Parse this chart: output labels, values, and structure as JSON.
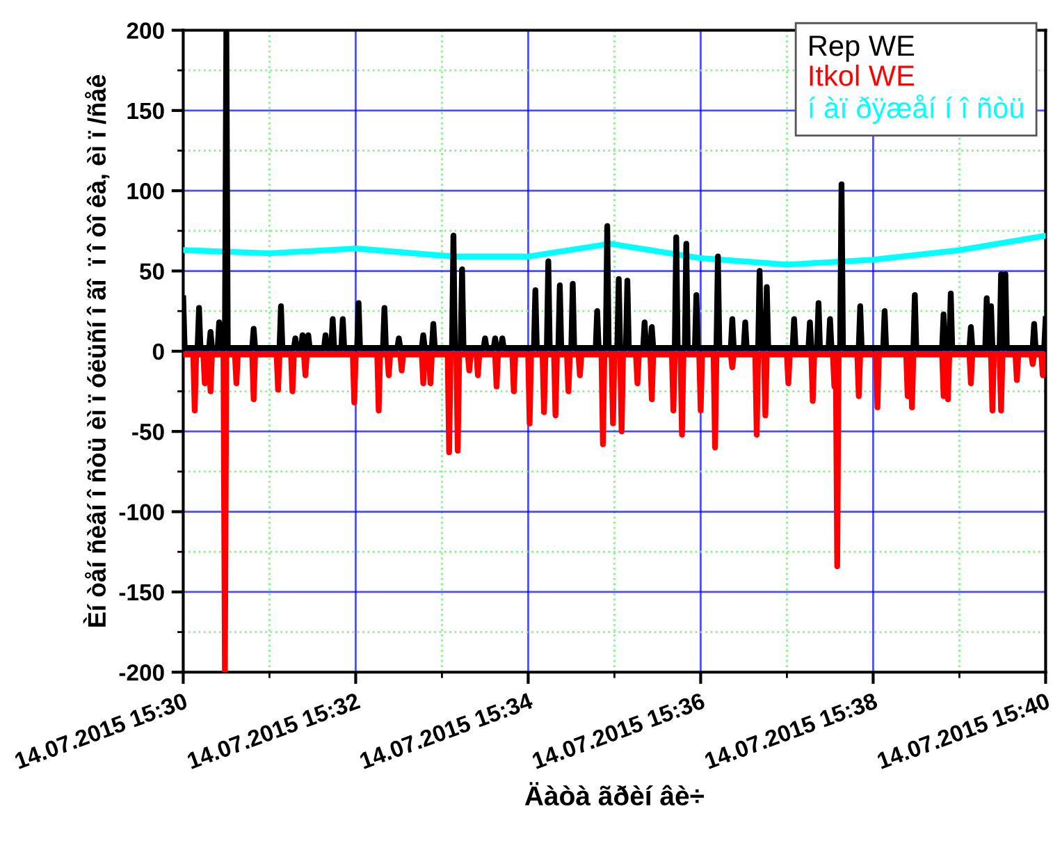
{
  "chart_data": {
    "type": "line",
    "xlabel": "Äàòà ãðèí âè÷",
    "ylabel": "Èí òåí ñèâí î ñòü èì ï óëüñí î ãî  ï î òî êà, èì ï /ñåê",
    "xlim": [
      "2015-07-14T15:30",
      "2015-07-14T15:40"
    ],
    "xticks": [
      {
        "value": "2015-07-14T15:30",
        "label": "14.07.2015 15:30"
      },
      {
        "value": "2015-07-14T15:31",
        "label": null
      },
      {
        "value": "2015-07-14T15:32",
        "label": "14.07.2015 15:32"
      },
      {
        "value": "2015-07-14T15:33",
        "label": null
      },
      {
        "value": "2015-07-14T15:34",
        "label": "14.07.2015 15:34"
      },
      {
        "value": "2015-07-14T15:35",
        "label": null
      },
      {
        "value": "2015-07-14T15:36",
        "label": "14.07.2015 15:36"
      },
      {
        "value": "2015-07-14T15:37",
        "label": null
      },
      {
        "value": "2015-07-14T15:38",
        "label": "14.07.2015 15:38"
      },
      {
        "value": "2015-07-14T15:39",
        "label": null
      },
      {
        "value": "2015-07-14T15:40",
        "label": "14.07.2015 15:40"
      }
    ],
    "ylim": [
      -200,
      200
    ],
    "yticks": [
      -200,
      {
        "value": -175,
        "label": null
      },
      -150,
      {
        "value": -125,
        "label": null
      },
      -100,
      {
        "value": -75,
        "label": null
      },
      -50,
      {
        "value": -25,
        "label": null
      },
      0,
      {
        "value": 25,
        "label": null
      },
      50,
      {
        "value": 75,
        "label": null
      },
      100,
      {
        "value": 125,
        "label": null
      },
      150,
      {
        "value": 175,
        "label": null
      },
      200
    ],
    "grid": true,
    "legend": "top right",
    "marker": "none",
    "line_style": "solid",
    "series": [
      {
        "name": "Rep WE",
        "color": "#000000",
        "x": [
          "2015-07-14T15:30:00",
          "2015-07-14T15:30:01",
          "2015-07-14T15:30:10",
          "2015-07-14T15:30:11",
          "2015-07-14T15:30:12",
          "2015-07-14T15:30:18",
          "2015-07-14T15:30:19",
          "2015-07-14T15:30:20",
          "2015-07-14T15:30:24",
          "2015-07-14T15:30:25",
          "2015-07-14T15:30:26",
          "2015-07-14T15:30:29",
          "2015-07-14T15:30:30",
          "2015-07-14T15:30:31",
          "2015-07-14T15:30:48",
          "2015-07-14T15:30:49",
          "2015-07-14T15:30:50",
          "2015-07-14T15:31:07",
          "2015-07-14T15:31:08",
          "2015-07-14T15:31:09",
          "2015-07-14T15:31:17",
          "2015-07-14T15:31:18",
          "2015-07-14T15:31:19",
          "2015-07-14T15:31:22",
          "2015-07-14T15:31:23",
          "2015-07-14T15:31:24",
          "2015-07-14T15:31:26",
          "2015-07-14T15:31:27",
          "2015-07-14T15:31:28",
          "2015-07-14T15:31:38",
          "2015-07-14T15:31:39",
          "2015-07-14T15:31:40",
          "2015-07-14T15:31:43",
          "2015-07-14T15:31:44",
          "2015-07-14T15:31:45",
          "2015-07-14T15:31:50",
          "2015-07-14T15:31:51",
          "2015-07-14T15:31:52",
          "2015-07-14T15:32:01",
          "2015-07-14T15:32:02",
          "2015-07-14T15:32:03",
          "2015-07-14T15:32:19",
          "2015-07-14T15:32:20",
          "2015-07-14T15:32:21",
          "2015-07-14T15:32:29",
          "2015-07-14T15:32:30",
          "2015-07-14T15:32:31",
          "2015-07-14T15:32:46",
          "2015-07-14T15:32:47",
          "2015-07-14T15:32:48",
          "2015-07-14T15:32:53",
          "2015-07-14T15:32:54",
          "2015-07-14T15:32:55",
          "2015-07-14T15:33:07",
          "2015-07-14T15:33:08",
          "2015-07-14T15:33:09",
          "2015-07-14T15:33:13",
          "2015-07-14T15:33:14",
          "2015-07-14T15:33:15",
          "2015-07-14T15:33:29",
          "2015-07-14T15:33:30",
          "2015-07-14T15:33:31",
          "2015-07-14T15:33:36",
          "2015-07-14T15:33:37",
          "2015-07-14T15:33:38",
          "2015-07-14T15:33:41",
          "2015-07-14T15:33:42",
          "2015-07-14T15:33:43",
          "2015-07-14T15:34:04",
          "2015-07-14T15:34:05",
          "2015-07-14T15:34:06",
          "2015-07-14T15:34:13",
          "2015-07-14T15:34:14",
          "2015-07-14T15:34:15",
          "2015-07-14T15:34:21",
          "2015-07-14T15:34:22",
          "2015-07-14T15:34:23",
          "2015-07-14T15:34:30",
          "2015-07-14T15:34:31",
          "2015-07-14T15:34:32",
          "2015-07-14T15:34:47",
          "2015-07-14T15:34:48",
          "2015-07-14T15:34:49",
          "2015-07-14T15:34:54",
          "2015-07-14T15:34:55",
          "2015-07-14T15:34:56",
          "2015-07-14T15:35:02",
          "2015-07-14T15:35:03",
          "2015-07-14T15:35:04",
          "2015-07-14T15:35:08",
          "2015-07-14T15:35:09",
          "2015-07-14T15:35:10",
          "2015-07-14T15:35:20",
          "2015-07-14T15:35:21",
          "2015-07-14T15:35:22",
          "2015-07-14T15:35:25",
          "2015-07-14T15:35:26",
          "2015-07-14T15:35:27",
          "2015-07-14T15:35:42",
          "2015-07-14T15:35:43",
          "2015-07-14T15:35:44",
          "2015-07-14T15:35:49",
          "2015-07-14T15:35:50",
          "2015-07-14T15:35:51",
          "2015-07-14T15:35:56",
          "2015-07-14T15:35:57",
          "2015-07-14T15:35:58",
          "2015-07-14T15:36:11",
          "2015-07-14T15:36:12",
          "2015-07-14T15:36:13",
          "2015-07-14T15:36:21",
          "2015-07-14T15:36:22",
          "2015-07-14T15:36:23",
          "2015-07-14T15:36:30",
          "2015-07-14T15:36:31",
          "2015-07-14T15:36:32",
          "2015-07-14T15:36:40",
          "2015-07-14T15:36:41",
          "2015-07-14T15:36:42",
          "2015-07-14T15:36:45",
          "2015-07-14T15:36:46",
          "2015-07-14T15:36:47",
          "2015-07-14T15:37:04",
          "2015-07-14T15:37:05",
          "2015-07-14T15:37:06",
          "2015-07-14T15:37:15",
          "2015-07-14T15:37:16",
          "2015-07-14T15:37:17",
          "2015-07-14T15:37:21",
          "2015-07-14T15:37:22",
          "2015-07-14T15:37:23",
          "2015-07-14T15:37:29",
          "2015-07-14T15:37:30",
          "2015-07-14T15:37:31",
          "2015-07-14T15:37:37",
          "2015-07-14T15:37:38",
          "2015-07-14T15:37:39",
          "2015-07-14T15:37:50",
          "2015-07-14T15:37:51",
          "2015-07-14T15:37:52",
          "2015-07-14T15:38:07",
          "2015-07-14T15:38:08",
          "2015-07-14T15:38:09",
          "2015-07-14T15:38:28",
          "2015-07-14T15:38:29",
          "2015-07-14T15:38:30",
          "2015-07-14T15:38:48",
          "2015-07-14T15:38:49",
          "2015-07-14T15:38:50",
          "2015-07-14T15:38:53",
          "2015-07-14T15:38:54",
          "2015-07-14T15:38:55",
          "2015-07-14T15:39:07",
          "2015-07-14T15:39:08",
          "2015-07-14T15:39:09",
          "2015-07-14T15:39:18",
          "2015-07-14T15:39:19",
          "2015-07-14T15:39:20",
          "2015-07-14T15:39:21",
          "2015-07-14T15:39:22",
          "2015-07-14T15:39:23",
          "2015-07-14T15:39:28",
          "2015-07-14T15:39:29",
          "2015-07-14T15:39:30",
          "2015-07-14T15:39:31",
          "2015-07-14T15:39:32",
          "2015-07-14T15:39:33",
          "2015-07-14T15:39:51",
          "2015-07-14T15:39:52",
          "2015-07-14T15:39:53",
          "2015-07-14T15:39:59",
          "2015-07-14T15:40:00"
        ],
        "values": [
          33,
          2,
          2,
          27,
          2,
          2,
          12,
          2,
          2,
          18,
          2,
          2,
          200,
          2,
          2,
          14,
          2,
          2,
          28,
          2,
          2,
          8,
          2,
          2,
          10,
          2,
          2,
          10,
          2,
          2,
          10,
          2,
          2,
          20,
          2,
          2,
          20,
          2,
          2,
          30,
          2,
          2,
          27,
          2,
          2,
          8,
          2,
          2,
          10,
          2,
          2,
          17,
          2,
          2,
          72,
          2,
          2,
          51,
          2,
          2,
          8,
          2,
          2,
          8,
          2,
          2,
          8,
          2,
          2,
          38,
          2,
          2,
          56,
          2,
          2,
          41,
          2,
          2,
          42,
          2,
          2,
          25,
          2,
          2,
          78,
          2,
          2,
          45,
          2,
          2,
          44,
          2,
          2,
          18,
          2,
          2,
          15,
          2,
          2,
          71,
          2,
          2,
          67,
          2,
          2,
          35,
          2,
          2,
          59,
          2,
          2,
          20,
          2,
          2,
          18,
          2,
          2,
          50,
          2,
          2,
          40,
          2,
          2,
          20,
          2,
          2,
          18,
          2,
          2,
          30,
          2,
          2,
          20,
          2,
          2,
          104,
          2,
          2,
          28,
          2,
          2,
          25,
          2,
          2,
          35,
          2,
          2,
          23,
          2,
          2,
          36,
          2,
          2,
          15,
          2,
          2,
          33,
          2,
          2,
          28,
          2,
          2,
          48,
          2,
          2,
          48,
          2,
          2,
          17,
          2,
          2,
          20
        ]
      },
      {
        "name": "Itkol WE",
        "color": "#ff0000",
        "x": [
          "2015-07-14T15:30:00",
          "2015-07-14T15:30:07",
          "2015-07-14T15:30:08",
          "2015-07-14T15:30:09",
          "2015-07-14T15:30:14",
          "2015-07-14T15:30:15",
          "2015-07-14T15:30:16",
          "2015-07-14T15:30:18",
          "2015-07-14T15:30:19",
          "2015-07-14T15:30:20",
          "2015-07-14T15:30:28",
          "2015-07-14T15:30:29",
          "2015-07-14T15:30:30",
          "2015-07-14T15:30:36",
          "2015-07-14T15:30:37",
          "2015-07-14T15:30:38",
          "2015-07-14T15:30:48",
          "2015-07-14T15:30:49",
          "2015-07-14T15:30:50",
          "2015-07-14T15:31:05",
          "2015-07-14T15:31:06",
          "2015-07-14T15:31:07",
          "2015-07-14T15:31:15",
          "2015-07-14T15:31:16",
          "2015-07-14T15:31:17",
          "2015-07-14T15:31:24",
          "2015-07-14T15:31:25",
          "2015-07-14T15:31:26",
          "2015-07-14T15:31:58",
          "2015-07-14T15:31:59",
          "2015-07-14T15:32:00",
          "2015-07-14T15:32:15",
          "2015-07-14T15:32:16",
          "2015-07-14T15:32:17",
          "2015-07-14T15:32:22",
          "2015-07-14T15:32:23",
          "2015-07-14T15:32:24",
          "2015-07-14T15:32:31",
          "2015-07-14T15:32:32",
          "2015-07-14T15:32:33",
          "2015-07-14T15:32:46",
          "2015-07-14T15:32:47",
          "2015-07-14T15:32:48",
          "2015-07-14T15:32:51",
          "2015-07-14T15:32:52",
          "2015-07-14T15:32:53",
          "2015-07-14T15:33:04",
          "2015-07-14T15:33:05",
          "2015-07-14T15:33:06",
          "2015-07-14T15:33:10",
          "2015-07-14T15:33:11",
          "2015-07-14T15:33:12",
          "2015-07-14T15:33:18",
          "2015-07-14T15:33:19",
          "2015-07-14T15:33:20",
          "2015-07-14T15:33:24",
          "2015-07-14T15:33:25",
          "2015-07-14T15:33:26",
          "2015-07-14T15:33:37",
          "2015-07-14T15:33:38",
          "2015-07-14T15:33:39",
          "2015-07-14T15:33:49",
          "2015-07-14T15:33:50",
          "2015-07-14T15:33:51",
          "2015-07-14T15:34:00",
          "2015-07-14T15:34:01",
          "2015-07-14T15:34:02",
          "2015-07-14T15:34:10",
          "2015-07-14T15:34:11",
          "2015-07-14T15:34:12",
          "2015-07-14T15:34:18",
          "2015-07-14T15:34:19",
          "2015-07-14T15:34:20",
          "2015-07-14T15:34:27",
          "2015-07-14T15:34:28",
          "2015-07-14T15:34:29",
          "2015-07-14T15:34:35",
          "2015-07-14T15:34:36",
          "2015-07-14T15:34:37",
          "2015-07-14T15:34:51",
          "2015-07-14T15:34:52",
          "2015-07-14T15:34:53",
          "2015-07-14T15:34:58",
          "2015-07-14T15:34:59",
          "2015-07-14T15:35:00",
          "2015-07-14T15:35:04",
          "2015-07-14T15:35:05",
          "2015-07-14T15:35:06",
          "2015-07-14T15:35:15",
          "2015-07-14T15:35:16",
          "2015-07-14T15:35:17",
          "2015-07-14T15:35:25",
          "2015-07-14T15:35:26",
          "2015-07-14T15:35:27",
          "2015-07-14T15:35:40",
          "2015-07-14T15:35:41",
          "2015-07-14T15:35:42",
          "2015-07-14T15:35:46",
          "2015-07-14T15:35:47",
          "2015-07-14T15:35:48",
          "2015-07-14T15:35:59",
          "2015-07-14T15:36:00",
          "2015-07-14T15:36:01",
          "2015-07-14T15:36:09",
          "2015-07-14T15:36:10",
          "2015-07-14T15:36:11",
          "2015-07-14T15:36:21",
          "2015-07-14T15:36:22",
          "2015-07-14T15:36:23",
          "2015-07-14T15:36:38",
          "2015-07-14T15:36:39",
          "2015-07-14T15:36:40",
          "2015-07-14T15:36:44",
          "2015-07-14T15:36:45",
          "2015-07-14T15:36:46",
          "2015-07-14T15:37:00",
          "2015-07-14T15:37:01",
          "2015-07-14T15:37:02",
          "2015-07-14T15:37:17",
          "2015-07-14T15:37:18",
          "2015-07-14T15:37:19",
          "2015-07-14T15:37:32",
          "2015-07-14T15:37:33",
          "2015-07-14T15:37:34",
          "2015-07-14T15:37:35",
          "2015-07-14T15:37:36",
          "2015-07-14T15:37:49",
          "2015-07-14T15:37:50",
          "2015-07-14T15:37:51",
          "2015-07-14T15:38:02",
          "2015-07-14T15:38:03",
          "2015-07-14T15:38:04",
          "2015-07-14T15:38:23",
          "2015-07-14T15:38:24",
          "2015-07-14T15:38:25",
          "2015-07-14T15:38:26",
          "2015-07-14T15:38:27",
          "2015-07-14T15:38:28",
          "2015-07-14T15:38:48",
          "2015-07-14T15:38:49",
          "2015-07-14T15:38:50",
          "2015-07-14T15:38:51",
          "2015-07-14T15:38:52",
          "2015-07-14T15:38:53",
          "2015-07-14T15:39:07",
          "2015-07-14T15:39:08",
          "2015-07-14T15:39:09",
          "2015-07-14T15:39:22",
          "2015-07-14T15:39:23",
          "2015-07-14T15:39:24",
          "2015-07-14T15:39:28",
          "2015-07-14T15:39:29",
          "2015-07-14T15:39:30",
          "2015-07-14T15:39:39",
          "2015-07-14T15:39:40",
          "2015-07-14T15:39:41",
          "2015-07-14T15:39:50",
          "2015-07-14T15:39:51",
          "2015-07-14T15:39:52",
          "2015-07-14T15:39:57",
          "2015-07-14T15:39:58",
          "2015-07-14T15:39:59",
          "2015-07-14T15:40:00"
        ],
        "values": [
          -2,
          -2,
          -37,
          -2,
          -2,
          -20,
          -2,
          -2,
          -25,
          -2,
          -2,
          -200,
          -2,
          -2,
          -20,
          -2,
          -2,
          -30,
          -2,
          -2,
          -24,
          -2,
          -2,
          -25,
          -2,
          -2,
          -15,
          -2,
          -2,
          -32,
          -2,
          -2,
          -37,
          -2,
          -2,
          -15,
          -2,
          -2,
          -12,
          -2,
          -2,
          -20,
          -2,
          -2,
          -20,
          -2,
          -2,
          -63,
          -2,
          -2,
          -62,
          -2,
          -2,
          -12,
          -2,
          -2,
          -15,
          -2,
          -2,
          -22,
          -2,
          -2,
          -25,
          -2,
          -2,
          -45,
          -2,
          -2,
          -38,
          -2,
          -2,
          -40,
          -2,
          -2,
          -25,
          -2,
          -2,
          -15,
          -2,
          -2,
          -58,
          -2,
          -2,
          -45,
          -2,
          -2,
          -50,
          -2,
          -2,
          -20,
          -2,
          -2,
          -30,
          -2,
          -2,
          -37,
          -2,
          -2,
          -52,
          -2,
          -2,
          -37,
          -2,
          -2,
          -60,
          -2,
          -2,
          -10,
          -2,
          -2,
          -52,
          -2,
          -2,
          -40,
          -2,
          -2,
          -20,
          -2,
          -2,
          -31,
          -2,
          -2,
          -22,
          -2,
          -134,
          -2,
          -2,
          -28,
          -2,
          -2,
          -35,
          -2,
          -2,
          -28,
          -2,
          -2,
          -35,
          -2,
          -2,
          -28,
          -2,
          -2,
          -30,
          -2,
          -2,
          -20,
          -2,
          -2,
          -37,
          -2,
          -2,
          -37,
          -2,
          -2,
          -18,
          -2,
          -2,
          -8,
          -2,
          -2,
          -15,
          -2,
          -2
        ]
      },
      {
        "name": "í àï ðÿæåí í î ñòü",
        "color": "#00ffff",
        "x": [
          "2015-07-14T15:30:00",
          "2015-07-14T15:31:00",
          "2015-07-14T15:32:00",
          "2015-07-14T15:33:08",
          "2015-07-14T15:34:00",
          "2015-07-14T15:34:57",
          "2015-07-14T15:36:00",
          "2015-07-14T15:37:00",
          "2015-07-14T15:38:00",
          "2015-07-14T15:39:00",
          "2015-07-14T15:40:00"
        ],
        "values": [
          63,
          61,
          64,
          59,
          59,
          67,
          58,
          54,
          57,
          63,
          72
        ]
      }
    ]
  }
}
